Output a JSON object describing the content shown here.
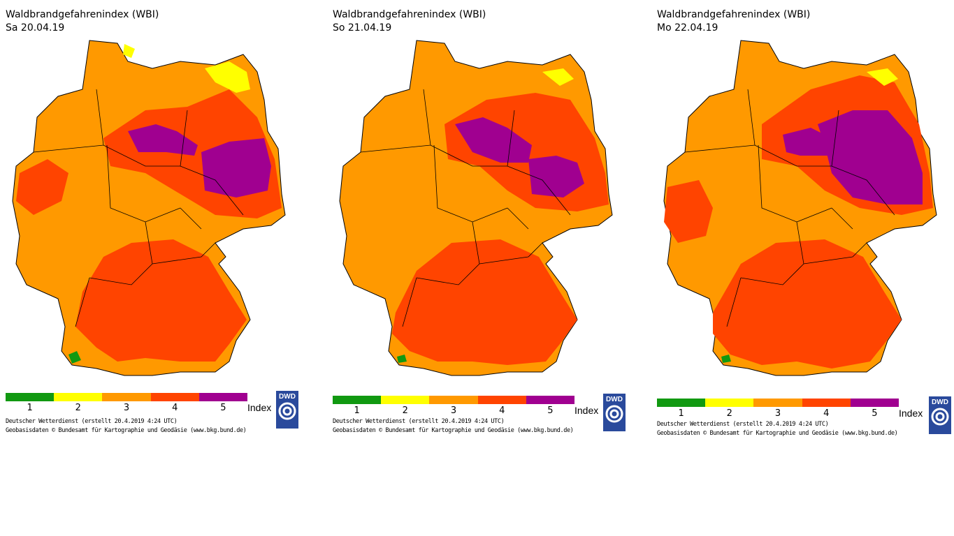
{
  "panels": [
    {
      "title": "Waldbrandgefahrenindex (WBI)",
      "date": "Sa 20.04.19",
      "credits1": "Deutscher Wetterdienst (erstellt 20.4.2019 4:24 UTC)",
      "credits2": "Geobasisdaten © Bundesamt für Kartographie und Geodäsie (www.bkg.bund.de)"
    },
    {
      "title": "Waldbrandgefahrenindex (WBI)",
      "date": "So 21.04.19",
      "credits1": "Deutscher Wetterdienst (erstellt 20.4.2019 4:24 UTC)",
      "credits2": "Geobasisdaten © Bundesamt für Kartographie und Geodäsie (www.bkg.bund.de)"
    },
    {
      "title": "Waldbrandgefahrenindex (WBI)",
      "date": "Mo 22.04.19",
      "credits1": "Deutscher Wetterdienst (erstellt 20.4.2019 4:24 UTC)",
      "credits2": "Geobasisdaten © Bundesamt für Kartographie und Geodäsie (www.bkg.bund.de)"
    }
  ],
  "legend": {
    "levels": [
      "1",
      "2",
      "3",
      "4",
      "5"
    ],
    "colors": [
      "#119911",
      "#ffff00",
      "#ff9900",
      "#ff4400",
      "#a00090"
    ],
    "label": "Index"
  },
  "logo": {
    "text": "DWD"
  }
}
